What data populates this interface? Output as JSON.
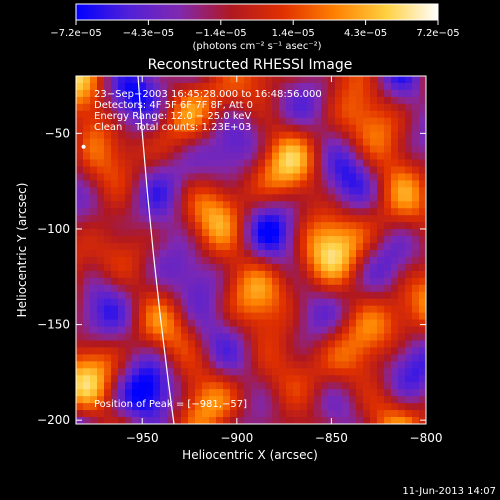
{
  "chart_data": {
    "type": "heatmap",
    "title": "Reconstructed RHESSI Image",
    "xlabel": "Heliocentric X (arcsec)",
    "ylabel": "Heliocentric Y (arcsec)",
    "xlim": [
      -985,
      -800
    ],
    "ylim": [
      -202,
      -20
    ],
    "x_ticks": [
      -950,
      -900,
      -850,
      -800
    ],
    "x_tick_labels": [
      "−950",
      "−900",
      "−850",
      "−800"
    ],
    "y_ticks": [
      -200,
      -150,
      -100,
      -50
    ],
    "y_tick_labels": [
      "−200",
      "−150",
      "−100",
      "−50"
    ],
    "colorbar": {
      "range": [
        -7.2e-05,
        7.2e-05
      ],
      "tick_labels": [
        "−7.2e−05",
        "−4.3e−05",
        "−1.4e−05",
        "1.4e−05",
        "4.3e−05",
        "7.2e−05"
      ],
      "unit_label": "(photons cm⁻² s⁻¹ asec⁻²)",
      "colors": [
        "#0000ff",
        "#5020d8",
        "#8028b0",
        "#b01820",
        "#e03000",
        "#ff8000",
        "#ffd040",
        "#ffffff"
      ]
    },
    "annotations": [
      "23−Sep−2003 16:45:28.000 to 16:48:56.000",
      "Detectors: 4F 5F 6F 7F 8F, Att 0",
      "Energy Range: 12.0 − 25.0 keV",
      "Clean    Total counts: 1.23E+03"
    ],
    "peak_label": "Position of Peak = [−981,−57]",
    "peak_position": [
      -981,
      -57
    ],
    "timestamp": "11-Jun-2013 14:07",
    "grid": false
  }
}
